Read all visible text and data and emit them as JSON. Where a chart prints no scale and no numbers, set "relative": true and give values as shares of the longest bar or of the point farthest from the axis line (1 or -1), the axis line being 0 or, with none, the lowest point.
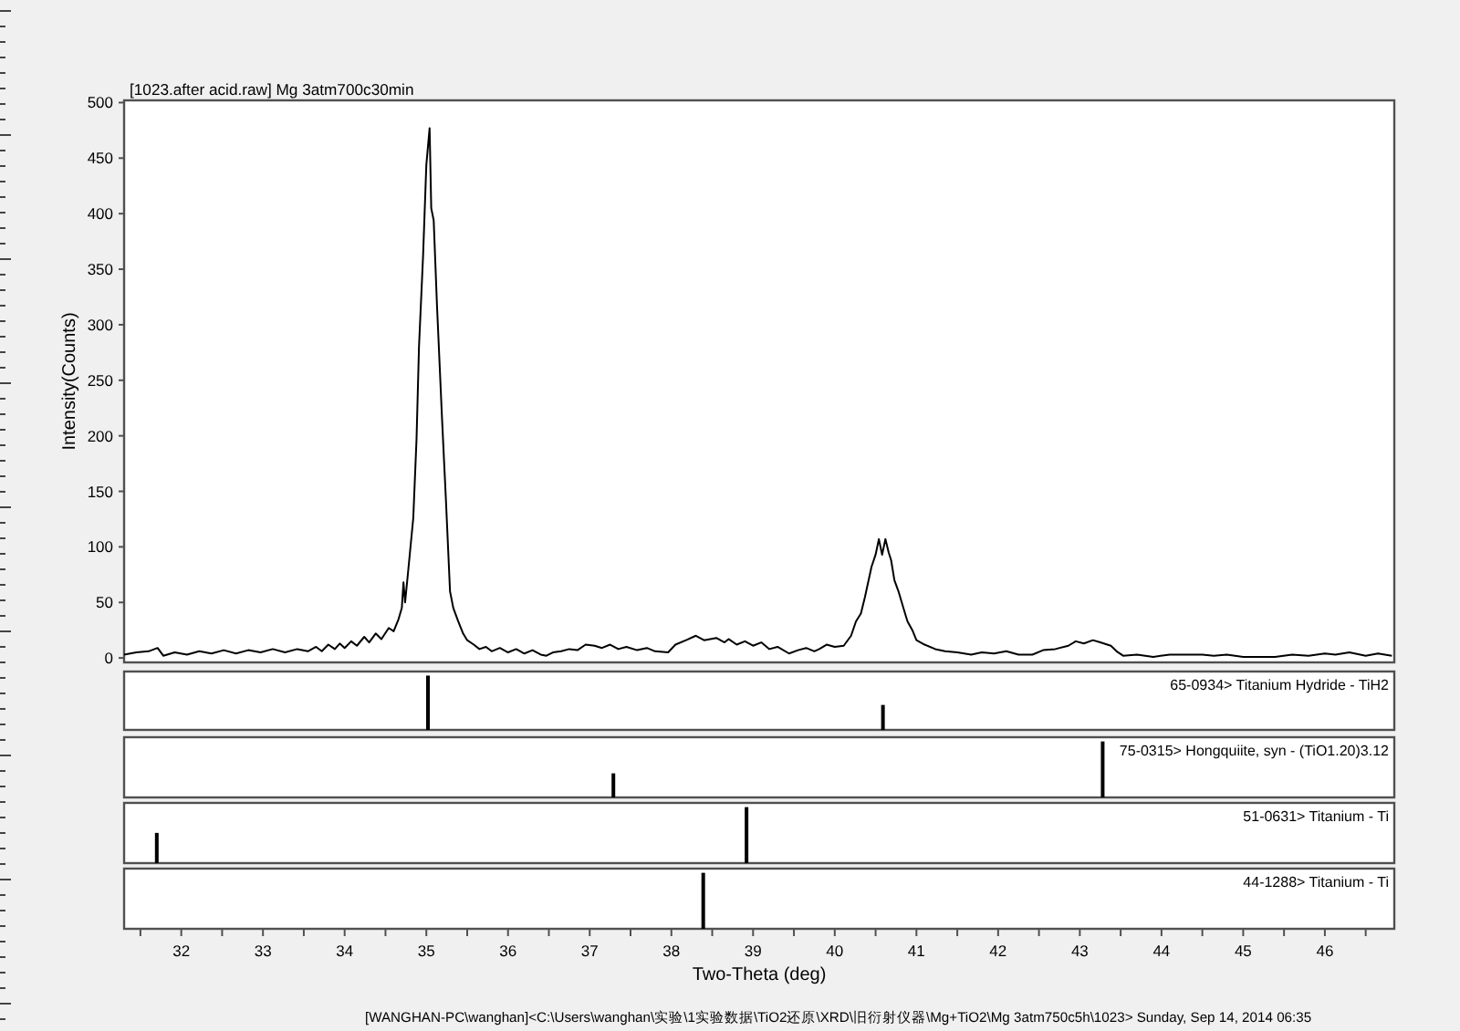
{
  "chart_data": [
    {
      "type": "line",
      "title": "[1023.after acid.raw] Mg 3atm700c30min",
      "ylabel": "Intensity(Counts)",
      "color": "#000000",
      "xlim": [
        31.3,
        46.85
      ],
      "ylim": [
        -4,
        502
      ],
      "yticks": [
        0,
        50,
        100,
        150,
        200,
        250,
        300,
        350,
        400,
        450,
        500
      ],
      "tick_labels": "y",
      "x": [
        31.3,
        31.45,
        31.6,
        31.71,
        31.78,
        31.92,
        32.07,
        32.22,
        32.37,
        32.52,
        32.67,
        32.82,
        32.97,
        33.12,
        33.27,
        33.42,
        33.55,
        33.65,
        33.72,
        33.8,
        33.88,
        33.94,
        34.0,
        34.08,
        34.15,
        34.24,
        34.3,
        34.38,
        34.45,
        34.54,
        34.6,
        34.66,
        34.7,
        34.72,
        34.74,
        34.78,
        34.84,
        34.88,
        34.91,
        34.96,
        35.0,
        35.04,
        35.06,
        35.09,
        35.13,
        35.19,
        35.24,
        35.29,
        35.33,
        35.39,
        35.45,
        35.5,
        35.58,
        35.65,
        35.73,
        35.8,
        35.9,
        36.0,
        36.1,
        36.2,
        36.3,
        36.4,
        36.47,
        36.55,
        36.65,
        36.75,
        36.85,
        36.95,
        37.06,
        37.15,
        37.25,
        37.35,
        37.45,
        37.58,
        37.7,
        37.8,
        37.96,
        38.05,
        38.18,
        38.3,
        38.4,
        38.55,
        38.65,
        38.7,
        38.8,
        38.9,
        39.0,
        39.1,
        39.2,
        39.3,
        39.44,
        39.55,
        39.65,
        39.75,
        39.81,
        39.9,
        40.0,
        40.11,
        40.2,
        40.26,
        40.32,
        40.37,
        40.45,
        40.5,
        40.54,
        40.58,
        40.62,
        40.66,
        40.69,
        40.73,
        40.78,
        40.84,
        40.89,
        40.95,
        41.0,
        41.1,
        41.23,
        41.35,
        41.5,
        41.67,
        41.8,
        41.95,
        42.1,
        42.25,
        42.42,
        42.55,
        42.7,
        42.86,
        42.95,
        43.05,
        43.16,
        43.25,
        43.38,
        43.45,
        43.53,
        43.7,
        43.9,
        44.1,
        44.5,
        44.64,
        44.8,
        45.0,
        45.39,
        45.6,
        45.8,
        46.0,
        46.13,
        46.3,
        46.5,
        46.65,
        46.82
      ],
      "values": [
        3,
        5,
        6,
        9,
        2,
        5,
        3,
        6,
        4,
        7,
        4,
        7,
        5,
        8,
        5,
        8,
        6,
        10,
        6,
        12,
        8,
        13,
        9,
        15,
        11,
        19,
        14,
        22,
        17,
        27,
        24,
        35,
        45,
        68,
        50,
        80,
        126,
        197,
        280,
        362,
        444,
        477,
        405,
        394,
        318,
        219,
        142,
        60,
        45,
        33,
        22,
        16,
        12,
        8,
        10,
        6,
        9,
        5,
        8,
        4,
        7,
        3,
        2,
        5,
        6,
        8,
        7,
        12,
        11,
        9,
        12,
        8,
        10,
        7,
        9,
        6,
        5,
        12,
        16,
        20,
        16,
        18,
        14,
        17,
        12,
        15,
        11,
        14,
        8,
        10,
        4,
        7,
        9,
        6,
        8,
        12,
        10,
        11,
        20,
        33,
        40,
        55,
        82,
        93,
        107,
        93,
        107,
        95,
        88,
        70,
        60,
        45,
        33,
        25,
        16,
        12,
        8,
        6,
        5,
        3,
        5,
        4,
        6,
        3,
        3,
        7,
        8,
        11,
        15,
        13,
        16,
        14,
        11,
        6,
        2,
        3,
        1,
        3,
        3,
        2,
        3,
        1,
        1,
        3,
        2,
        4,
        3,
        5,
        2,
        4,
        2
      ]
    },
    {
      "type": "bar",
      "title": "65-0934> Titanium Hydride - TiH2",
      "x": [
        35.02,
        40.59
      ],
      "values": [
        1,
        0.46
      ],
      "color": "#000000",
      "relative": true,
      "xlim": [
        31.3,
        46.85
      ],
      "tick_labels": false
    },
    {
      "type": "bar",
      "title": "75-0315> Hongquiite, syn - (TiO1.20)3.12",
      "x": [
        37.29,
        43.28
      ],
      "values": [
        0.43,
        1
      ],
      "color": "#000000",
      "relative": true,
      "xlim": [
        31.3,
        46.85
      ],
      "tick_labels": false
    },
    {
      "type": "bar",
      "title": "51-0631> Titanium - Ti",
      "x": [
        31.7,
        38.92
      ],
      "values": [
        0.54,
        1
      ],
      "color": "#000000",
      "relative": true,
      "xlim": [
        31.3,
        46.85
      ],
      "tick_labels": false
    },
    {
      "type": "bar",
      "title": "44-1288> Titanium - Ti",
      "x": [
        38.39
      ],
      "values": [
        1
      ],
      "color": "#000000",
      "relative": true,
      "xlim": [
        31.3,
        46.85
      ],
      "tick_labels": "x",
      "xlabel": "Two-Theta (deg)",
      "xticks": [
        {
          "value": 31.5,
          "label": null
        },
        32,
        {
          "value": 32.5,
          "label": null
        },
        33,
        {
          "value": 33.5,
          "label": null
        },
        34,
        {
          "value": 34.5,
          "label": null
        },
        35,
        {
          "value": 35.5,
          "label": null
        },
        36,
        {
          "value": 36.5,
          "label": null
        },
        37,
        {
          "value": 37.5,
          "label": null
        },
        38,
        {
          "value": 38.5,
          "label": null
        },
        39,
        {
          "value": 39.5,
          "label": null
        },
        40,
        {
          "value": 40.5,
          "label": null
        },
        41,
        {
          "value": 41.5,
          "label": null
        },
        42,
        {
          "value": 42.5,
          "label": null
        },
        43,
        {
          "value": 43.5,
          "label": null
        },
        44,
        {
          "value": 44.5,
          "label": null
        },
        45,
        {
          "value": 45.5,
          "label": null
        },
        46,
        {
          "value": 46.5,
          "label": null
        }
      ],
      "annotations": [
        "[WANGHAN-PC\\wanghan]<C:\\Users\\wanghan\\实验\\1实验数据\\TiO2还原\\XRD\\旧衍射仪器\\Mg+TiO2\\Mg 3atm750c5h\\1023> Sunday, Sep 14, 2014 06:35"
      ]
    }
  ]
}
